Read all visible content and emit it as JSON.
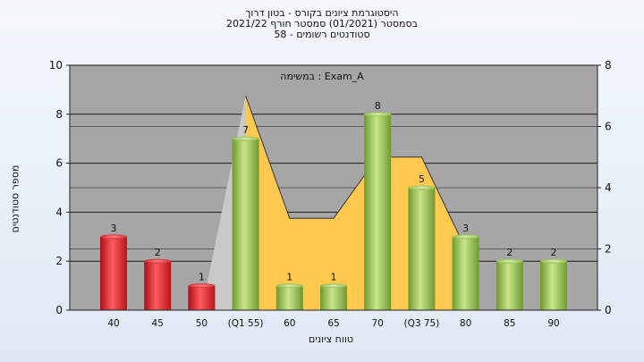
{
  "title_lines": [
    "היסטוגרמת ציונים בקורס - בטון דרוך",
    "בסמסטר  (01/2021)  סמסטר חורף 2021/22",
    "סטודנטים רשומים - 58"
  ],
  "annotation": "במשימה : Exam_A",
  "colors": {
    "bar_low": "#e0252b",
    "bar_high": "#94c04a",
    "area": "#ffc84f",
    "area_left": "#c9c9c9",
    "plot_bg": "#a6a6a6"
  },
  "chart_data": {
    "type": "bar",
    "title": "היסטוגרמת ציונים בקורס - בטון דרוך",
    "xlabel": "טווח ציונים",
    "ylabel": "מספר סטודנטים",
    "categories": [
      "40",
      "45",
      "50",
      "(Q1 55)",
      "60",
      "65",
      "70",
      "(Q3 75)",
      "80",
      "85",
      "90"
    ],
    "values": [
      3,
      2,
      1,
      7,
      1,
      1,
      8,
      5,
      3,
      2,
      2
    ],
    "bar_colors": [
      "red",
      "red",
      "red",
      "green",
      "green",
      "green",
      "green",
      "green",
      "green",
      "green",
      "green"
    ],
    "ylim": [
      0,
      10
    ],
    "yticks": [
      0,
      2,
      4,
      6,
      8,
      10
    ],
    "y2lim": [
      0,
      8
    ],
    "y2ticks": [
      0,
      2,
      4,
      6,
      8
    ],
    "secondary_area": {
      "x": [
        "50",
        "(Q1 55)",
        "60",
        "65",
        "70",
        "(Q3 75)",
        "80"
      ],
      "values": [
        0,
        7,
        3,
        3,
        5,
        5,
        2
      ]
    },
    "grid": true
  }
}
